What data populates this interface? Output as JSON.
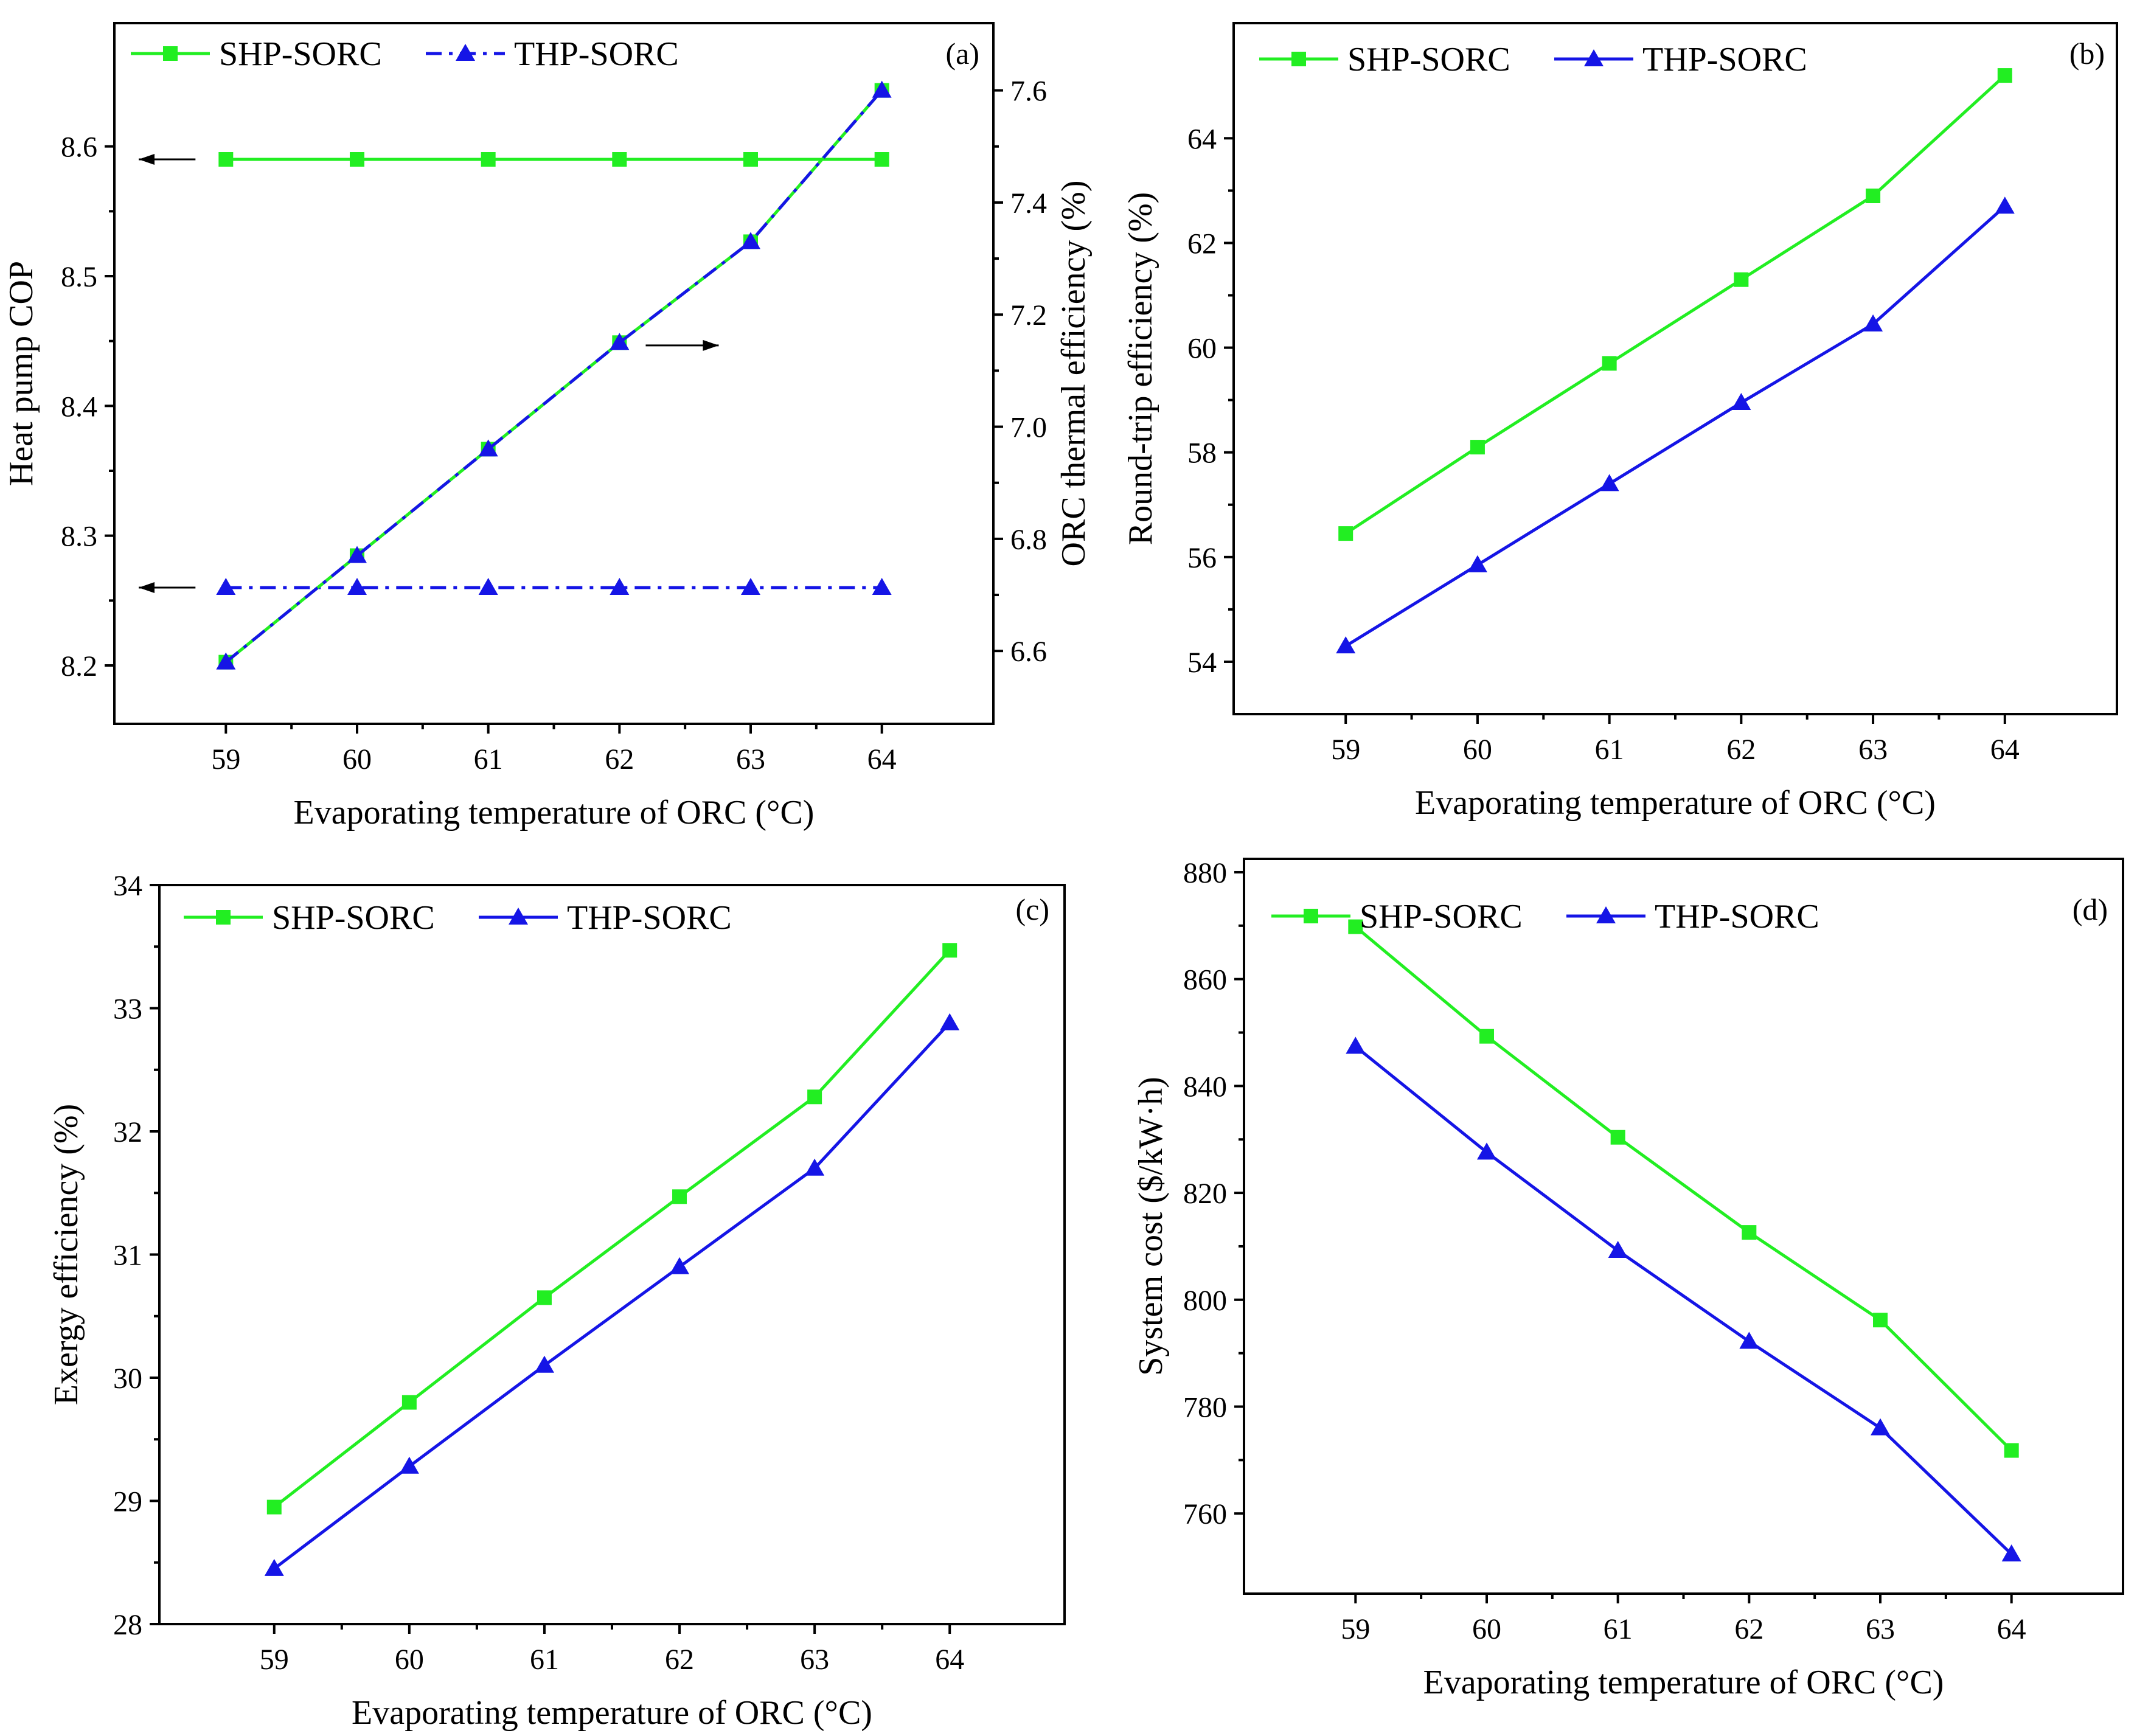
{
  "colors": {
    "shp": "#22ee22",
    "thp": "#1515e6",
    "axis": "#000000"
  },
  "chart_data": [
    {
      "id": "a",
      "type": "line",
      "panel_label": "(a)",
      "xlabel": "Evaporating temperature of ORC (°C)",
      "ylabel": "Heat pump COP",
      "ylabel_right": "ORC thermal efficiency (%)",
      "x": [
        59,
        60,
        61,
        62,
        63,
        64
      ],
      "xlim": [
        58.15,
        64.85
      ],
      "xticks": [
        59,
        60,
        61,
        62,
        63,
        64
      ],
      "ylim": [
        8.155,
        8.695
      ],
      "yticks": [
        "8.2",
        "8.3",
        "8.4",
        "8.5",
        "8.6"
      ],
      "ylim_right": [
        6.47,
        7.72
      ],
      "yticks_right": [
        "6.6",
        "6.8",
        "7.0",
        "7.2",
        "7.4",
        "7.6"
      ],
      "legend": [
        "SHP-SORC",
        "THP-SORC"
      ],
      "series": [
        {
          "name": "SHP-SORC",
          "key": "shp",
          "axis": "left",
          "marker": "square",
          "dash": "solid",
          "values": [
            8.59,
            8.59,
            8.59,
            8.59,
            8.59,
            8.59
          ]
        },
        {
          "name": "THP-SORC",
          "key": "thp",
          "axis": "left",
          "marker": "triangle",
          "dash": "dashdot",
          "values": [
            8.26,
            8.26,
            8.26,
            8.26,
            8.26,
            8.26
          ]
        },
        {
          "name": "SHP-SORC",
          "key": "shp",
          "axis": "right",
          "marker": "square",
          "dash": "solid",
          "values": [
            6.58,
            6.77,
            6.96,
            7.15,
            7.33,
            7.6
          ],
          "in_legend": false
        },
        {
          "name": "THP-SORC",
          "key": "thp",
          "axis": "right",
          "marker": "triangle",
          "dash": "dashdot",
          "values": [
            6.58,
            6.77,
            6.96,
            7.15,
            7.33,
            7.6
          ],
          "in_legend": false
        }
      ],
      "annotations": [
        {
          "type": "arrow-left",
          "label": "points to left axis",
          "at_x": 59,
          "at_y": 8.59
        },
        {
          "type": "arrow-left",
          "label": "points to left axis",
          "at_x": 59,
          "at_y": 8.26
        },
        {
          "type": "arrow-right",
          "label": "points to right axis",
          "at_x": 62.2,
          "at_y_right": 7.145
        }
      ]
    },
    {
      "id": "b",
      "type": "line",
      "panel_label": "(b)",
      "xlabel": "Evaporating temperature of ORC (°C)",
      "ylabel": "Round-trip efficiency (%)",
      "x": [
        59,
        60,
        61,
        62,
        63,
        64
      ],
      "xlim": [
        58.15,
        64.85
      ],
      "xticks": [
        59,
        60,
        61,
        62,
        63,
        64
      ],
      "ylim": [
        53.0,
        66.2
      ],
      "yticks": [
        "54",
        "56",
        "58",
        "60",
        "62",
        "64"
      ],
      "legend": [
        "SHP-SORC",
        "THP-SORC"
      ],
      "series": [
        {
          "name": "SHP-SORC",
          "key": "shp",
          "marker": "square",
          "dash": "solid",
          "values": [
            56.45,
            58.1,
            59.7,
            61.3,
            62.9,
            65.2
          ]
        },
        {
          "name": "THP-SORC",
          "key": "thp",
          "marker": "triangle",
          "dash": "solid",
          "values": [
            54.3,
            55.85,
            57.4,
            58.95,
            60.45,
            62.7
          ]
        }
      ]
    },
    {
      "id": "c",
      "type": "line",
      "panel_label": "(c)",
      "xlabel": "Evaporating temperature of ORC (°C)",
      "ylabel": "Exergy efficiency (%)",
      "x": [
        59,
        60,
        61,
        62,
        63,
        64
      ],
      "xlim": [
        58.15,
        64.85
      ],
      "xticks": [
        59,
        60,
        61,
        62,
        63,
        64
      ],
      "ylim": [
        28.0,
        34.0
      ],
      "yticks": [
        "28",
        "29",
        "30",
        "31",
        "32",
        "33",
        "34"
      ],
      "legend": [
        "SHP-SORC",
        "THP-SORC"
      ],
      "series": [
        {
          "name": "SHP-SORC",
          "key": "shp",
          "marker": "square",
          "dash": "solid",
          "values": [
            28.95,
            29.8,
            30.65,
            31.47,
            32.28,
            33.47
          ]
        },
        {
          "name": "THP-SORC",
          "key": "thp",
          "marker": "triangle",
          "dash": "solid",
          "values": [
            28.45,
            29.28,
            30.1,
            30.9,
            31.7,
            32.88
          ]
        }
      ]
    },
    {
      "id": "d",
      "type": "line",
      "panel_label": "(d)",
      "xlabel": "Evaporating temperature of ORC (°C)",
      "ylabel": "System cost ($/kW·h)",
      "x": [
        59,
        60,
        61,
        62,
        63,
        64
      ],
      "xlim": [
        58.15,
        64.85
      ],
      "xticks": [
        59,
        60,
        61,
        62,
        63,
        64
      ],
      "ylim": [
        745.0,
        882.5
      ],
      "yticks": [
        "760",
        "780",
        "800",
        "820",
        "840",
        "860",
        "880"
      ],
      "legend": [
        "SHP-SORC",
        "THP-SORC"
      ],
      "series": [
        {
          "name": "SHP-SORC",
          "key": "shp",
          "marker": "square",
          "dash": "solid",
          "values": [
            869.8,
            849.3,
            830.4,
            812.6,
            796.2,
            771.8
          ]
        },
        {
          "name": "THP-SORC",
          "key": "thp",
          "marker": "triangle",
          "dash": "solid",
          "values": [
            847.4,
            827.6,
            809.2,
            792.2,
            776.0,
            752.4
          ]
        }
      ]
    }
  ]
}
